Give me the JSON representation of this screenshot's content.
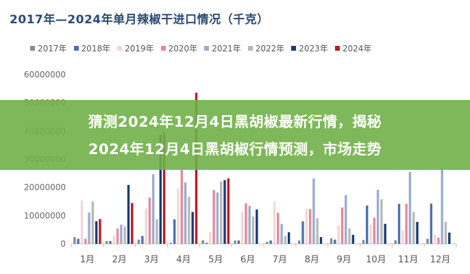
{
  "chart_data": {
    "type": "bar",
    "title": "2017年—2024年单月辣椒干进口情况（千克）",
    "categories": [
      "1月",
      "2月",
      "3月",
      "4月",
      "5月",
      "6月",
      "7月",
      "8月",
      "9月",
      "10月",
      "11月",
      "12月"
    ],
    "y_ticks": [
      "0",
      "10000000",
      "20000000",
      "30000000",
      "40000000",
      "50000000",
      "60000000"
    ],
    "ylim": [
      0,
      60000000
    ],
    "legend_position": "top",
    "grid": false,
    "series": [
      {
        "name": "2017年",
        "color": "#8a8a8a",
        "values": [
          2400000,
          1000000,
          1500000,
          400000,
          1300000,
          1200000,
          700000,
          1200000,
          2000000,
          1400000,
          1300000,
          1800000
        ]
      },
      {
        "name": "2018年",
        "color": "#4a72b0",
        "values": [
          1800000,
          1000000,
          2800000,
          8700000,
          400000,
          1200000,
          1200000,
          8000000,
          1500000,
          13600000,
          14200000,
          14300000
        ]
      },
      {
        "name": "2019年",
        "color": "#f0d8d8",
        "values": [
          15400000,
          3000000,
          12500000,
          19600000,
          4300000,
          11200000,
          15000000,
          12500000,
          6600000,
          6800000,
          4800000,
          3200000
        ]
      },
      {
        "name": "2020年",
        "color": "#e88898",
        "values": [
          1800000,
          5400000,
          16400000,
          26300000,
          19100000,
          14400000,
          11000000,
          12300000,
          12900000,
          9300000,
          14200000,
          2200000
        ]
      },
      {
        "name": "2021年",
        "color": "#98aed0",
        "values": [
          11100000,
          6800000,
          24700000,
          21800000,
          18200000,
          13500000,
          7000000,
          23200000,
          17300000,
          19200000,
          25500000,
          26800000
        ]
      },
      {
        "name": "2022年",
        "color": "#b8b8b8",
        "values": [
          15000000,
          6200000,
          8700000,
          16700000,
          22100000,
          9700000,
          2800000,
          9100000,
          5500000,
          15800000,
          11300000,
          7800000
        ]
      },
      {
        "name": "2023年",
        "color": "#1c3a70",
        "values": [
          8000000,
          20900000,
          38600000,
          11300000,
          22600000,
          12200000,
          4100000,
          2400000,
          3200000,
          7100000,
          7800000,
          4000000
        ]
      },
      {
        "name": "2024年",
        "color": "#c01820",
        "values": [
          8800000,
          14500000,
          39400000,
          53600000,
          23200000,
          0,
          0,
          0,
          0,
          0,
          0,
          0
        ]
      }
    ]
  },
  "overlay": {
    "line1": "猜测2024年12月4日黑胡椒最新行情，揭秘",
    "line2": "2024年12月4日黑胡椒行情预测，市场走势"
  }
}
